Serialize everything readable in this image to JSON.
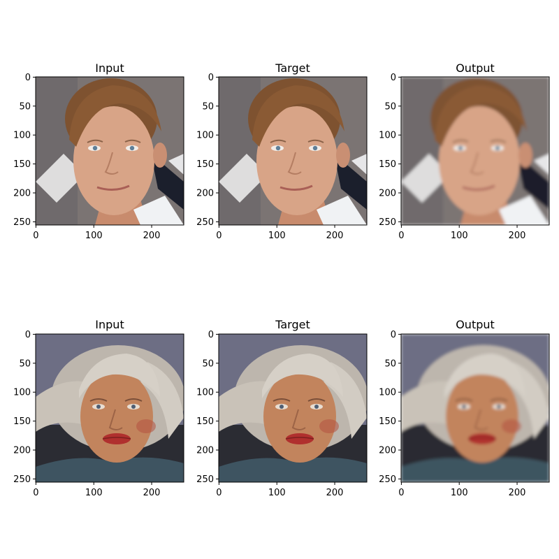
{
  "figure": {
    "rows": [
      {
        "panels": [
          {
            "title": "Input",
            "image": "face-1-input"
          },
          {
            "title": "Target",
            "image": "face-1-target"
          },
          {
            "title": "Output",
            "image": "face-1-output"
          }
        ]
      },
      {
        "panels": [
          {
            "title": "Input",
            "image": "face-2-input"
          },
          {
            "title": "Target",
            "image": "face-2-target"
          },
          {
            "title": "Output",
            "image": "face-2-output"
          }
        ]
      }
    ],
    "y_ticks": [
      "0",
      "50",
      "100",
      "150",
      "200",
      "250"
    ],
    "x_ticks": [
      "0",
      "100",
      "200"
    ],
    "colors": {
      "row1_background": "#7d7675",
      "row1_skin": "#d9a586",
      "row1_hair": "#8a5a34",
      "row2_background": "#6e6f85",
      "row2_skin": "#c2845d",
      "row2_hair": "#cfc8bf",
      "row2_sweater": "#3e5461",
      "lips": "#b0302e"
    }
  }
}
